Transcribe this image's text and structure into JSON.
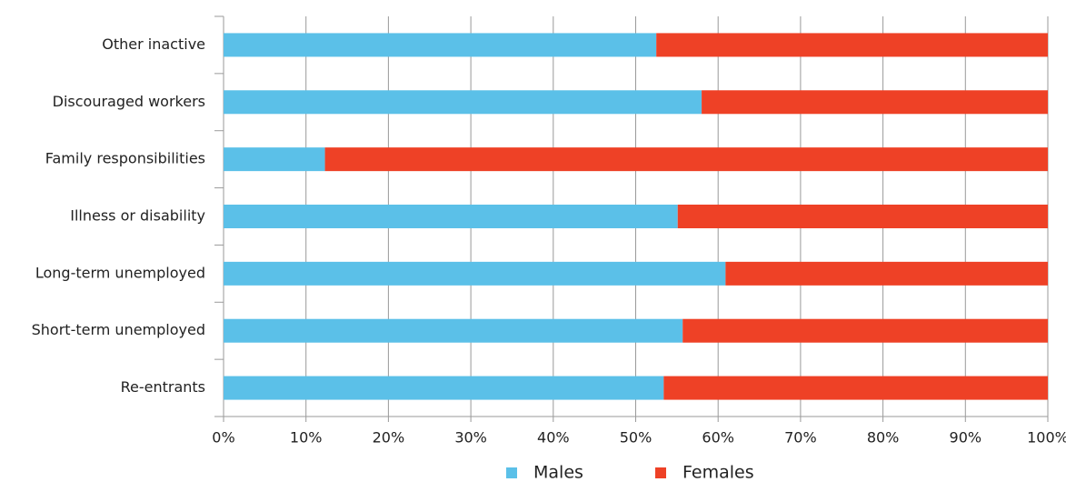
{
  "chart_data": {
    "type": "stacked_barh",
    "categories": [
      "Other inactive",
      "Discouraged workers",
      "Family responsibilities",
      "Illness or disability",
      "Long-term unemployed",
      "Short-term unemployed",
      "Re-entrants"
    ],
    "series": [
      {
        "name": "Males",
        "color": "#5bc0e8",
        "values": [
          52.5,
          58,
          12.3,
          55.1,
          60.9,
          55.7,
          53.4
        ]
      },
      {
        "name": "Females",
        "color": "#ee4126",
        "values": [
          47.5,
          42,
          87.7,
          44.9,
          39.1,
          44.3,
          46.6
        ]
      }
    ],
    "xlim": [
      0,
      100
    ],
    "xticks": [
      {
        "value": 0,
        "label": "0%"
      },
      {
        "value": 10,
        "label": "10%"
      },
      {
        "value": 20,
        "label": "20%"
      },
      {
        "value": 30,
        "label": "30%"
      },
      {
        "value": 40,
        "label": "40%"
      },
      {
        "value": 50,
        "label": "50%"
      },
      {
        "value": 60,
        "label": "60%"
      },
      {
        "value": 70,
        "label": "70%"
      },
      {
        "value": 80,
        "label": "80%"
      },
      {
        "value": 90,
        "label": "90%"
      },
      {
        "value": 100,
        "label": "100%"
      }
    ],
    "grid": true,
    "legend": "bottom"
  }
}
